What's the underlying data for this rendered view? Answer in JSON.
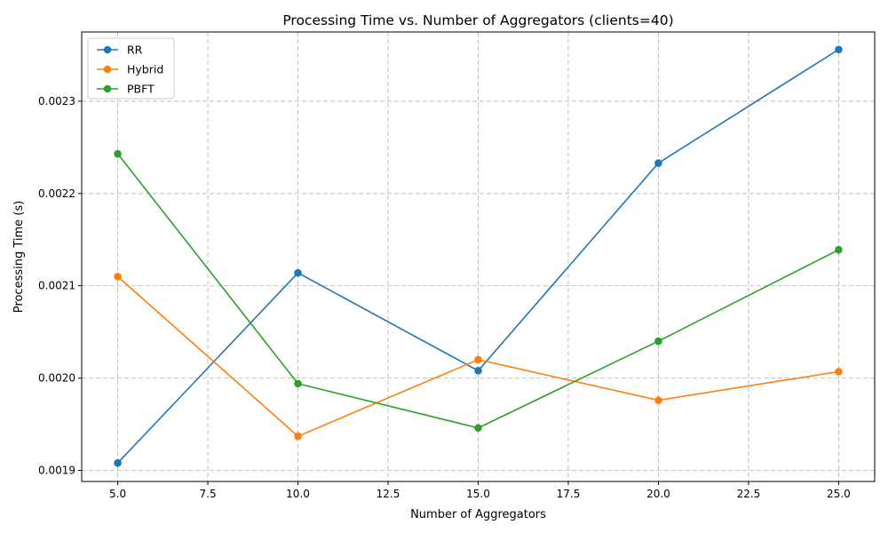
{
  "chart_data": {
    "type": "line",
    "title": "Processing Time vs. Number of Aggregators (clients=40)",
    "xlabel": "Number of Aggregators",
    "ylabel": "Processing Time (s)",
    "x": [
      5,
      10,
      15,
      20,
      25
    ],
    "xlim": [
      4.0,
      26.0
    ],
    "ylim": [
      0.001888,
      0.002375
    ],
    "x_ticks": [
      5.0,
      7.5,
      10.0,
      12.5,
      15.0,
      17.5,
      20.0,
      22.5,
      25.0
    ],
    "x_tick_labels": [
      "5.0",
      "7.5",
      "10.0",
      "12.5",
      "15.0",
      "17.5",
      "20.0",
      "22.5",
      "25.0"
    ],
    "y_ticks": [
      0.0019,
      0.002,
      0.0021,
      0.0022,
      0.0023
    ],
    "y_tick_labels": [
      "0.0019",
      "0.0020",
      "0.0021",
      "0.0022",
      "0.0023"
    ],
    "grid": true,
    "legend_position": "top-left",
    "series": [
      {
        "name": "RR",
        "color": "#1f77b4",
        "values": [
          0.001908,
          0.002114,
          0.002008,
          0.002233,
          0.002356
        ]
      },
      {
        "name": "Hybrid",
        "color": "#ff7f0e",
        "values": [
          0.00211,
          0.001937,
          0.00202,
          0.001976,
          0.002007
        ]
      },
      {
        "name": "PBFT",
        "color": "#2ca02c",
        "values": [
          0.002243,
          0.001994,
          0.001946,
          0.00204,
          0.002139
        ]
      }
    ]
  }
}
